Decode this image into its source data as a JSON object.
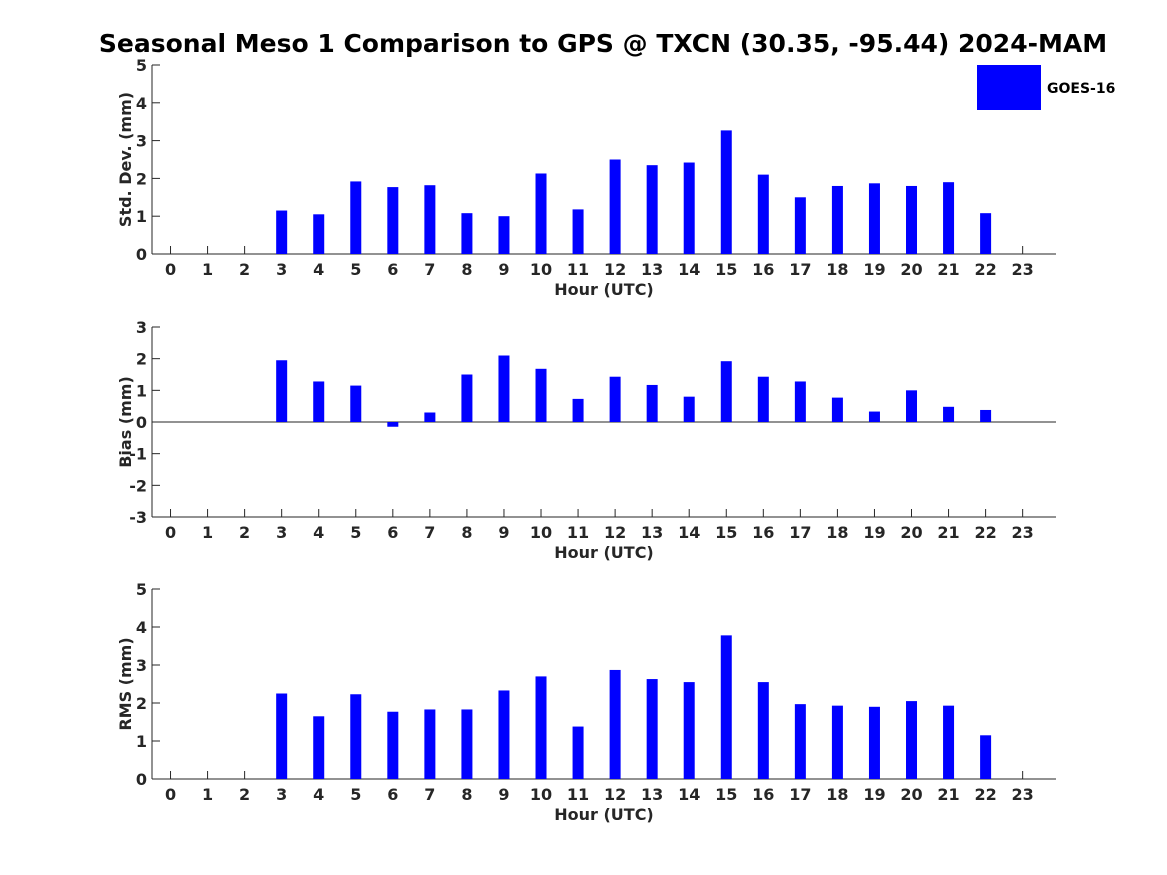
{
  "figure": {
    "title": "Seasonal Meso 1 Comparison to GPS @ TXCN (30.35, -95.44) 2024-MAM",
    "legend": {
      "label": "GOES-16",
      "color": "#0000ff",
      "placement": "top-right"
    }
  },
  "chart_data": [
    {
      "type": "bar",
      "xlabel": "Hour (UTC)",
      "ylabel": "Std. Dev. (mm)",
      "xlim": [
        -0.5,
        23.9
      ],
      "ylim": [
        0,
        5
      ],
      "yticks": [
        "0",
        "1",
        "2",
        "3",
        "4",
        "5"
      ],
      "categories": [
        "0",
        "1",
        "2",
        "3",
        "4",
        "5",
        "6",
        "7",
        "8",
        "9",
        "10",
        "11",
        "12",
        "13",
        "14",
        "15",
        "16",
        "17",
        "18",
        "19",
        "20",
        "21",
        "22",
        "23"
      ],
      "series": [
        {
          "name": "GOES-16",
          "color": "#0000ff",
          "values": [
            null,
            null,
            null,
            1.15,
            1.05,
            1.92,
            1.77,
            1.82,
            1.08,
            1.0,
            2.13,
            1.18,
            2.5,
            2.35,
            2.42,
            3.27,
            2.1,
            1.5,
            1.8,
            1.87,
            1.8,
            1.9,
            1.08,
            null
          ]
        }
      ]
    },
    {
      "type": "bar",
      "xlabel": "Hour (UTC)",
      "ylabel": "Bias (mm)",
      "xlim": [
        -0.5,
        23.9
      ],
      "ylim": [
        -3,
        3
      ],
      "yticks": [
        "-3",
        "-2",
        "-1",
        "0",
        "1",
        "2",
        "3"
      ],
      "categories": [
        "0",
        "1",
        "2",
        "3",
        "4",
        "5",
        "6",
        "7",
        "8",
        "9",
        "10",
        "11",
        "12",
        "13",
        "14",
        "15",
        "16",
        "17",
        "18",
        "19",
        "20",
        "21",
        "22",
        "23"
      ],
      "series": [
        {
          "name": "GOES-16",
          "color": "#0000ff",
          "values": [
            null,
            null,
            null,
            1.95,
            1.28,
            1.15,
            -0.15,
            0.3,
            1.5,
            2.1,
            1.68,
            0.73,
            1.43,
            1.17,
            0.8,
            1.92,
            1.43,
            1.28,
            0.77,
            0.33,
            1.0,
            0.48,
            0.38,
            null
          ]
        }
      ]
    },
    {
      "type": "bar",
      "xlabel": "Hour (UTC)",
      "ylabel": "RMS (mm)",
      "xlim": [
        -0.5,
        23.9
      ],
      "ylim": [
        0,
        5
      ],
      "yticks": [
        "0",
        "1",
        "2",
        "3",
        "4",
        "5"
      ],
      "categories": [
        "0",
        "1",
        "2",
        "3",
        "4",
        "5",
        "6",
        "7",
        "8",
        "9",
        "10",
        "11",
        "12",
        "13",
        "14",
        "15",
        "16",
        "17",
        "18",
        "19",
        "20",
        "21",
        "22",
        "23"
      ],
      "series": [
        {
          "name": "GOES-16",
          "color": "#0000ff",
          "values": [
            null,
            null,
            null,
            2.25,
            1.65,
            2.23,
            1.77,
            1.83,
            1.83,
            2.33,
            2.7,
            1.38,
            2.87,
            2.63,
            2.55,
            3.78,
            2.55,
            1.97,
            1.93,
            1.9,
            2.05,
            1.93,
            1.15,
            null
          ]
        }
      ]
    }
  ]
}
